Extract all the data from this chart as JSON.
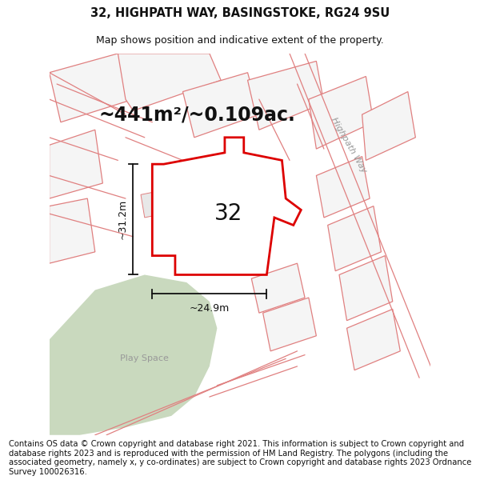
{
  "title": "32, HIGHPATH WAY, BASINGSTOKE, RG24 9SU",
  "subtitle": "Map shows position and indicative extent of the property.",
  "area_text": "~441m²/~0.109ac.",
  "width_text": "~24.9m",
  "height_text": "~31.2m",
  "number_label": "32",
  "road_label": "Highpath Way",
  "play_space_label": "Play Space",
  "footer": "Contains OS data © Crown copyright and database right 2021. This information is subject to Crown copyright and database rights 2023 and is reproduced with the permission of HM Land Registry. The polygons (including the associated geometry, namely x, y co-ordinates) are subject to Crown copyright and database rights 2023 Ordnance Survey 100026316.",
  "bg_color": "#ffffff",
  "map_bg": "#ebebeb",
  "plot_fill": "#ffffff",
  "plot_stroke": "#dd0000",
  "green_area_color": "#c9d9be",
  "other_plot_fill": "#f5f5f5",
  "other_plot_stroke": "#e08080",
  "dim_line_color": "#111111",
  "text_color": "#111111",
  "label_color": "#999999",
  "title_fontsize": 10.5,
  "subtitle_fontsize": 9,
  "area_fontsize": 17,
  "number_fontsize": 20,
  "footer_fontsize": 7.2,
  "road_label_fontsize": 8
}
